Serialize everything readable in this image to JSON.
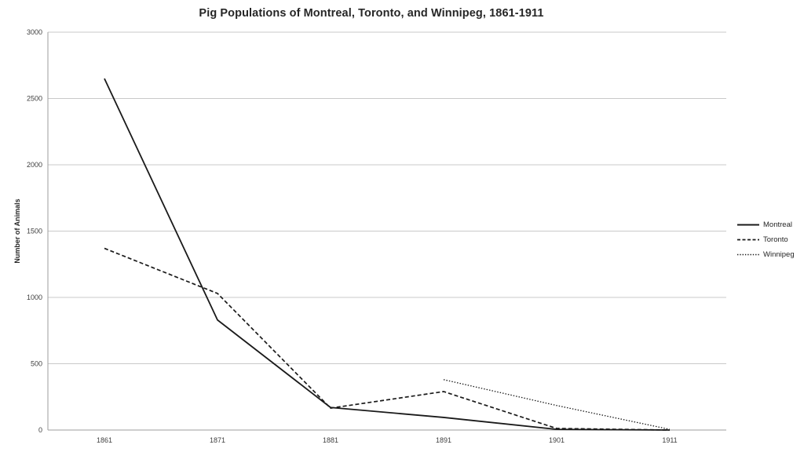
{
  "page": {
    "background": "#ffffff"
  },
  "chart_data": {
    "type": "line",
    "title": "Pig Populations of Montreal, Toronto, and Winnipeg, 1861-1911",
    "ylabel": "Number of Animals",
    "xlabel": "",
    "x": [
      "1861",
      "1871",
      "1881",
      "1891",
      "1901",
      "1911"
    ],
    "ylim": [
      0,
      3000
    ],
    "yticks": [
      0,
      500,
      1000,
      1500,
      2000,
      2500,
      3000
    ],
    "grid": "horizontal-only",
    "legend_position": "right-middle",
    "series": [
      {
        "name": "Montreal",
        "style": "solid",
        "values": [
          2650,
          830,
          170,
          95,
          5,
          0
        ]
      },
      {
        "name": "Toronto",
        "style": "dashed",
        "values": [
          1370,
          1030,
          165,
          290,
          12,
          0
        ]
      },
      {
        "name": "Winnipeg",
        "style": "dotted",
        "values": [
          null,
          null,
          null,
          380,
          185,
          5
        ]
      }
    ],
    "colors": {
      "line": "#1a1a1a",
      "gridline": "#c9c9c9",
      "axis": "#9e9e9e",
      "tick_text": "#404040"
    }
  }
}
